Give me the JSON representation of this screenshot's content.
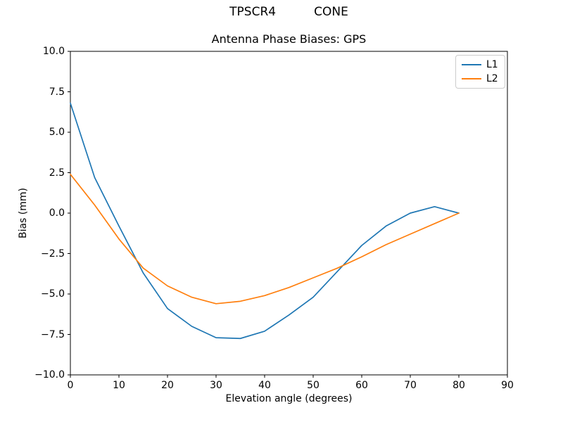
{
  "header": {
    "suptitle": "TPSCR4          CONE"
  },
  "chart_data": {
    "type": "line",
    "suptitle": "TPSCR4          CONE",
    "title": "Antenna Phase Biases: GPS",
    "xlabel": "Elevation angle (degrees)",
    "ylabel": "Bias (mm)",
    "xlim": [
      0,
      90
    ],
    "ylim": [
      -10,
      10
    ],
    "grid": false,
    "x_ticks": [
      {
        "value": 0,
        "label": "0"
      },
      {
        "value": 10,
        "label": "10"
      },
      {
        "value": 20,
        "label": "20"
      },
      {
        "value": 30,
        "label": "30"
      },
      {
        "value": 40,
        "label": "40"
      },
      {
        "value": 50,
        "label": "50"
      },
      {
        "value": 60,
        "label": "60"
      },
      {
        "value": 70,
        "label": "70"
      },
      {
        "value": 80,
        "label": "80"
      },
      {
        "value": 90,
        "label": "90"
      }
    ],
    "y_ticks": [
      {
        "value": 10,
        "label": "10.0"
      },
      {
        "value": 7.5,
        "label": "7.5"
      },
      {
        "value": 5,
        "label": "5.0"
      },
      {
        "value": 2.5,
        "label": "2.5"
      },
      {
        "value": 0,
        "label": "0.0"
      },
      {
        "value": -2.5,
        "label": "−2.5"
      },
      {
        "value": -5,
        "label": "−5.0"
      },
      {
        "value": -7.5,
        "label": "−7.5"
      },
      {
        "value": -10,
        "label": "−10.0"
      }
    ],
    "x": [
      0,
      5,
      10,
      15,
      20,
      25,
      30,
      35,
      40,
      45,
      50,
      55,
      60,
      65,
      70,
      75,
      80
    ],
    "series": [
      {
        "name": "L1",
        "color": "#1f77b4",
        "values": [
          6.8,
          2.2,
          -0.8,
          -3.7,
          -5.9,
          -7.0,
          -7.7,
          -7.75,
          -7.3,
          -6.3,
          -5.2,
          -3.6,
          -2.0,
          -0.8,
          0.0,
          0.4,
          0.0
        ]
      },
      {
        "name": "L2",
        "color": "#ff7f0e",
        "values": [
          2.4,
          0.5,
          -1.6,
          -3.4,
          -4.5,
          -5.2,
          -5.6,
          -5.45,
          -5.1,
          -4.6,
          -4.0,
          -3.4,
          -2.7,
          -1.95,
          -1.3,
          -0.65,
          0.0
        ]
      }
    ],
    "legend": {
      "position": "upper right",
      "entries": [
        {
          "label": "L1",
          "color": "#1f77b4"
        },
        {
          "label": "L2",
          "color": "#ff7f0e"
        }
      ]
    }
  }
}
